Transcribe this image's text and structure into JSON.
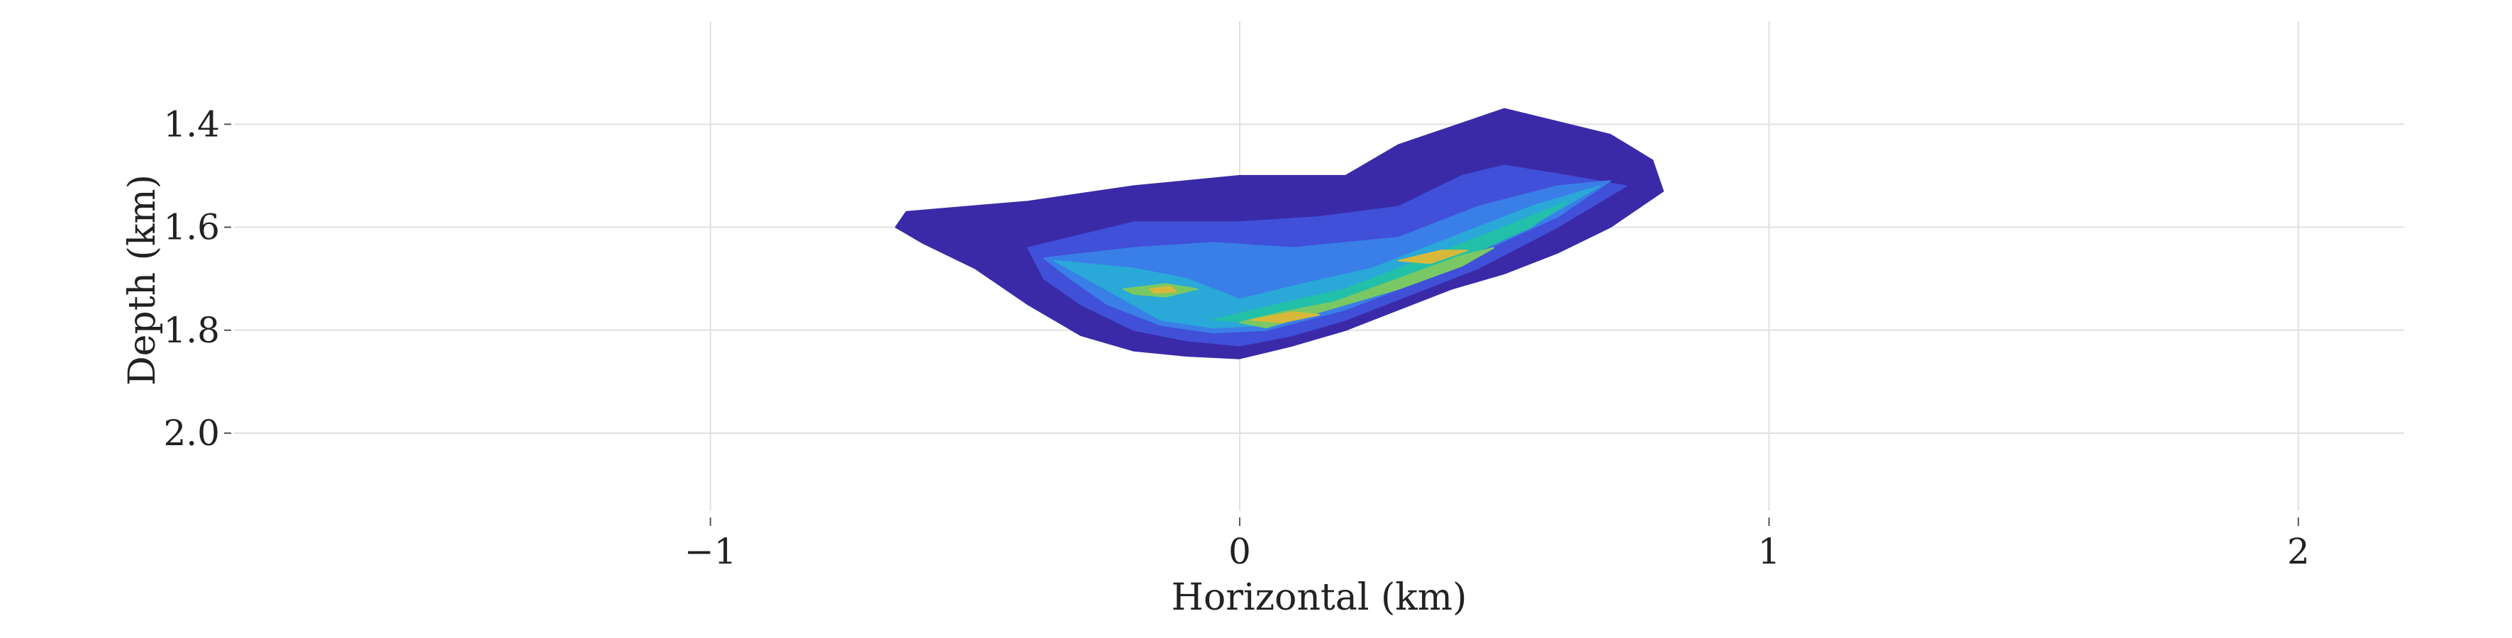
{
  "chart_data": {
    "type": "heatmap",
    "xlabel": "Horizontal (km)",
    "ylabel": "Depth (km)",
    "xlim": [
      -1.9,
      2.2
    ],
    "ylim": [
      2.15,
      1.2
    ],
    "y_inverted": true,
    "grid": true,
    "x_ticks": [
      {
        "value": -1,
        "label": "−1"
      },
      {
        "value": 0,
        "label": "0"
      },
      {
        "value": 1,
        "label": "1"
      },
      {
        "value": 2,
        "label": "2"
      }
    ],
    "y_ticks": [
      {
        "value": 1.4,
        "label": "1.4"
      },
      {
        "value": 1.6,
        "label": "1.6"
      },
      {
        "value": 1.8,
        "label": "1.8"
      },
      {
        "value": 2.0,
        "label": "2.0"
      }
    ],
    "colormap": [
      "#3b2aa8",
      "#4050d8",
      "#3a7ee8",
      "#2aa8d8",
      "#22c0a8",
      "#7ac864",
      "#d8b83a"
    ],
    "density_levels": [
      {
        "level": 1,
        "color": "#3b2aa8",
        "polygon": [
          [
            -0.63,
            1.57
          ],
          [
            -0.4,
            1.55
          ],
          [
            -0.2,
            1.52
          ],
          [
            0.0,
            1.5
          ],
          [
            0.2,
            1.5
          ],
          [
            0.3,
            1.44
          ],
          [
            0.5,
            1.37
          ],
          [
            0.7,
            1.42
          ],
          [
            0.78,
            1.47
          ],
          [
            0.8,
            1.53
          ],
          [
            0.7,
            1.6
          ],
          [
            0.6,
            1.65
          ],
          [
            0.5,
            1.69
          ],
          [
            0.4,
            1.72
          ],
          [
            0.3,
            1.76
          ],
          [
            0.2,
            1.8
          ],
          [
            0.1,
            1.83
          ],
          [
            0.0,
            1.855
          ],
          [
            -0.1,
            1.85
          ],
          [
            -0.2,
            1.84
          ],
          [
            -0.3,
            1.81
          ],
          [
            -0.4,
            1.75
          ],
          [
            -0.5,
            1.68
          ],
          [
            -0.6,
            1.63
          ],
          [
            -0.65,
            1.6
          ]
        ]
      },
      {
        "level": 2,
        "color": "#4050d8",
        "polygon": [
          [
            -0.4,
            1.64
          ],
          [
            -0.2,
            1.59
          ],
          [
            0.0,
            1.59
          ],
          [
            0.15,
            1.58
          ],
          [
            0.3,
            1.56
          ],
          [
            0.42,
            1.5
          ],
          [
            0.5,
            1.48
          ],
          [
            0.62,
            1.5
          ],
          [
            0.73,
            1.52
          ],
          [
            0.6,
            1.6
          ],
          [
            0.45,
            1.68
          ],
          [
            0.3,
            1.74
          ],
          [
            0.2,
            1.78
          ],
          [
            0.1,
            1.81
          ],
          [
            0.0,
            1.83
          ],
          [
            -0.1,
            1.82
          ],
          [
            -0.2,
            1.8
          ],
          [
            -0.3,
            1.75
          ],
          [
            -0.37,
            1.7
          ]
        ]
      },
      {
        "level": 3,
        "color": "#3a7ee8",
        "polygon": [
          [
            -0.37,
            1.66
          ],
          [
            -0.2,
            1.64
          ],
          [
            -0.05,
            1.63
          ],
          [
            0.1,
            1.64
          ],
          [
            0.3,
            1.62
          ],
          [
            0.45,
            1.56
          ],
          [
            0.6,
            1.52
          ],
          [
            0.7,
            1.51
          ],
          [
            0.6,
            1.58
          ],
          [
            0.45,
            1.65
          ],
          [
            0.3,
            1.72
          ],
          [
            0.2,
            1.76
          ],
          [
            0.05,
            1.8
          ],
          [
            -0.05,
            1.805
          ],
          [
            -0.15,
            1.79
          ],
          [
            -0.25,
            1.75
          ],
          [
            -0.32,
            1.7
          ]
        ]
      },
      {
        "level": 4,
        "color": "#2aa8d8",
        "polygon": [
          [
            -0.35,
            1.665
          ],
          [
            -0.2,
            1.68
          ],
          [
            -0.1,
            1.7
          ],
          [
            0.0,
            1.74
          ],
          [
            0.12,
            1.71
          ],
          [
            0.25,
            1.68
          ],
          [
            0.4,
            1.62
          ],
          [
            0.55,
            1.56
          ],
          [
            0.68,
            1.52
          ],
          [
            0.58,
            1.58
          ],
          [
            0.43,
            1.65
          ],
          [
            0.3,
            1.71
          ],
          [
            0.18,
            1.75
          ],
          [
            0.05,
            1.79
          ],
          [
            -0.05,
            1.795
          ],
          [
            -0.15,
            1.78
          ]
        ]
      },
      {
        "level": 5,
        "color": "#22c0a8",
        "polygon": [
          [
            -0.05,
            1.78
          ],
          [
            0.05,
            1.755
          ],
          [
            0.2,
            1.72
          ],
          [
            0.35,
            1.66
          ],
          [
            0.5,
            1.6
          ],
          [
            0.62,
            1.55
          ],
          [
            0.55,
            1.6
          ],
          [
            0.42,
            1.66
          ],
          [
            0.3,
            1.71
          ],
          [
            0.15,
            1.755
          ],
          [
            0.05,
            1.785
          ]
        ]
      },
      {
        "level": 6,
        "color": "#7ac864",
        "polygon": [
          [
            0.0,
            1.785
          ],
          [
            0.08,
            1.765
          ],
          [
            0.18,
            1.745
          ],
          [
            0.3,
            1.7
          ],
          [
            0.42,
            1.655
          ],
          [
            0.48,
            1.64
          ],
          [
            0.42,
            1.675
          ],
          [
            0.3,
            1.72
          ],
          [
            0.15,
            1.765
          ],
          [
            0.05,
            1.795
          ]
        ]
      },
      {
        "level": 7,
        "color": "#d8b83a",
        "polygon": [
          [
            0.02,
            1.78
          ],
          [
            0.1,
            1.765
          ],
          [
            0.15,
            1.77
          ],
          [
            0.08,
            1.785
          ]
        ]
      },
      {
        "level": 6,
        "color": "#7ac864",
        "polygon": [
          [
            -0.22,
            1.72
          ],
          [
            -0.14,
            1.71
          ],
          [
            -0.08,
            1.72
          ],
          [
            -0.14,
            1.735
          ],
          [
            -0.2,
            1.73
          ]
        ]
      },
      {
        "level": 7,
        "color": "#d8b83a",
        "polygon": [
          [
            -0.17,
            1.72
          ],
          [
            -0.13,
            1.715
          ],
          [
            -0.12,
            1.725
          ],
          [
            -0.16,
            1.728
          ]
        ]
      },
      {
        "level": 7,
        "color": "#d8b83a",
        "polygon": [
          [
            0.3,
            1.665
          ],
          [
            0.38,
            1.645
          ],
          [
            0.43,
            1.645
          ],
          [
            0.36,
            1.67
          ]
        ]
      }
    ]
  }
}
